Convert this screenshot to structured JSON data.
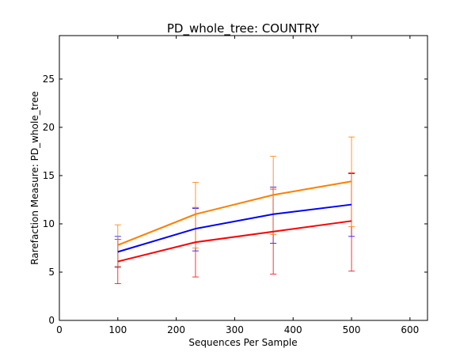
{
  "chart_data": {
    "type": "line",
    "title": "PD_whole_tree: COUNTRY",
    "xlabel": "Sequences Per Sample",
    "ylabel": "Rarefaction Measure: PD_whole_tree",
    "xlim": [
      0,
      630
    ],
    "ylim": [
      0,
      29.5
    ],
    "xticks": [
      0,
      100,
      200,
      300,
      400,
      500,
      600
    ],
    "yticks": [
      0,
      5,
      10,
      15,
      20,
      25
    ],
    "x": [
      100,
      233,
      366,
      500
    ],
    "grid": false,
    "series": [
      {
        "color": "#0000ff",
        "values": [
          7.1,
          9.5,
          11.0,
          12.0
        ],
        "err_low": [
          5.5,
          7.2,
          8.0,
          8.7
        ],
        "err_high": [
          8.7,
          11.6,
          13.8,
          15.2
        ]
      },
      {
        "color": "#ff0000",
        "values": [
          6.1,
          8.1,
          9.2,
          10.3
        ],
        "err_low": [
          3.8,
          4.5,
          4.8,
          5.1
        ],
        "err_high": [
          8.4,
          11.7,
          13.6,
          15.3
        ]
      },
      {
        "color": "#ff7f00",
        "values": [
          7.8,
          11.0,
          13.0,
          14.4
        ],
        "err_low": [
          5.6,
          7.5,
          8.9,
          9.7
        ],
        "err_high": [
          9.9,
          14.3,
          17.0,
          19.0
        ]
      }
    ]
  }
}
